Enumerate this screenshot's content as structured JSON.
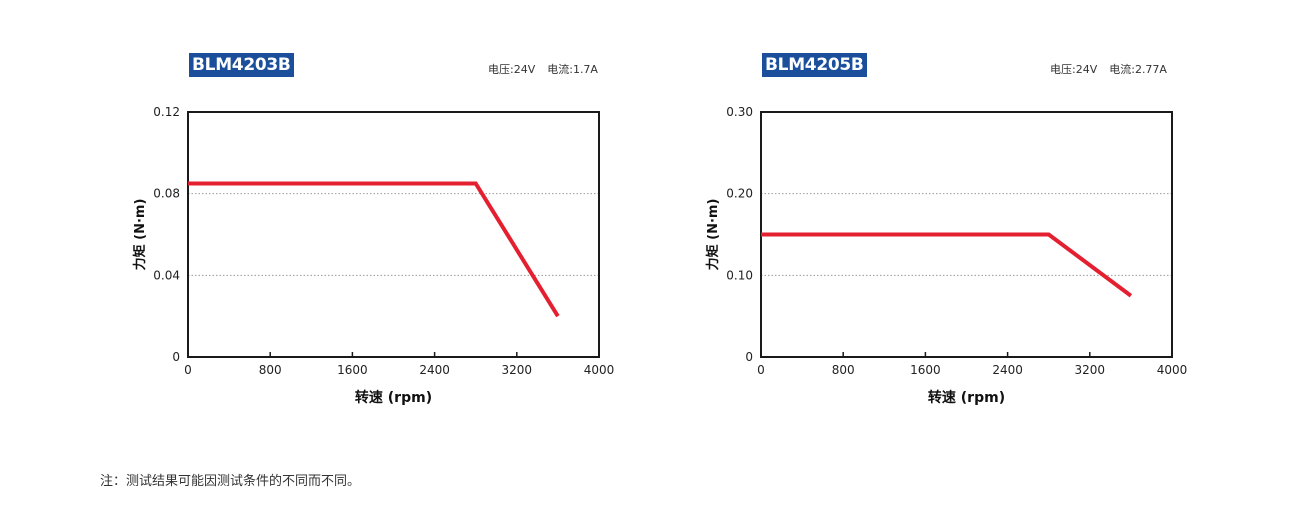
{
  "note": "注：测试结果可能因测试条件的不同而不同。",
  "chart_data": [
    {
      "type": "line",
      "title": "BLM4203B",
      "voltage": "电压:24V",
      "current": "电流:1.7A",
      "xlabel": "转速 (rpm)",
      "ylabel": "力矩 (N·m)",
      "xlim": [
        0,
        4000
      ],
      "ylim": [
        0,
        0.12
      ],
      "xticks": [
        "0",
        "800",
        "1600",
        "2400",
        "3200",
        "4000"
      ],
      "yticks": [
        "0",
        "0.04",
        "0.08",
        "0.12"
      ],
      "grid": "horizontal dotted",
      "color": "#e42030",
      "series": [
        {
          "x": [
            0,
            2800,
            3600
          ],
          "y": [
            0.085,
            0.085,
            0.02
          ]
        }
      ]
    },
    {
      "type": "line",
      "title": "BLM4205B",
      "voltage": "电压:24V",
      "current": "电流:2.77A",
      "xlabel": "转速 (rpm)",
      "ylabel": "力矩 (N·m)",
      "xlim": [
        0,
        4000
      ],
      "ylim": [
        0,
        0.3
      ],
      "xticks": [
        "0",
        "800",
        "1600",
        "2400",
        "3200",
        "4000"
      ],
      "yticks": [
        "0",
        "0.10",
        "0.20",
        "0.30"
      ],
      "grid": "horizontal dotted",
      "color": "#e42030",
      "series": [
        {
          "x": [
            0,
            2800,
            3600
          ],
          "y": [
            0.15,
            0.15,
            0.075
          ]
        }
      ]
    }
  ]
}
